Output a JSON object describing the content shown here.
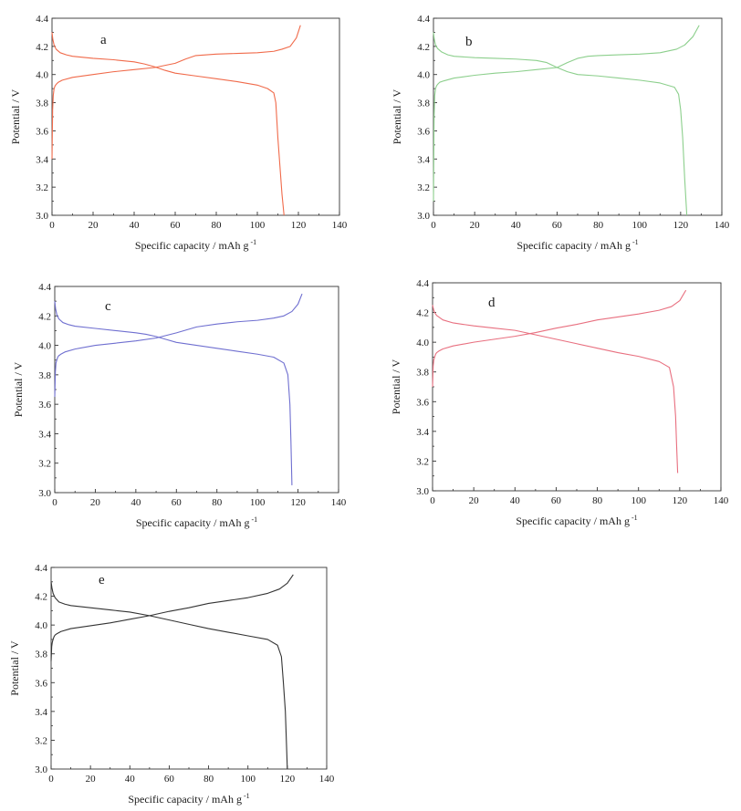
{
  "chart_data": [
    {
      "panel": "a",
      "type": "line",
      "xlabel": "Specific capacity / mAh g",
      "xlabel_superscript": "-1",
      "ylabel": "Potential / V",
      "xlim": [
        0,
        140
      ],
      "ylim": [
        3.0,
        4.4
      ],
      "xticks": [
        "0",
        "20",
        "40",
        "60",
        "80",
        "100",
        "120",
        "140"
      ],
      "yticks": [
        "3.0",
        "3.2",
        "3.4",
        "3.6",
        "3.8",
        "4.0",
        "4.2",
        "4.4"
      ],
      "color": "#f06a4a",
      "series": [
        {
          "x": [
            0,
            0.3,
            0.6,
            1,
            1.5,
            2,
            3,
            5,
            10,
            20,
            30,
            40,
            50,
            60,
            65,
            70,
            80,
            90,
            100,
            108,
            112,
            116,
            119,
            121
          ],
          "y": [
            3.4,
            3.75,
            3.85,
            3.9,
            3.92,
            3.93,
            3.945,
            3.96,
            3.98,
            4.0,
            4.02,
            4.035,
            4.05,
            4.08,
            4.11,
            4.135,
            4.145,
            4.15,
            4.155,
            4.165,
            4.18,
            4.2,
            4.26,
            4.35
          ]
        },
        {
          "x": [
            0,
            0.4,
            1,
            2,
            4,
            7,
            10,
            20,
            30,
            40,
            45,
            50,
            55,
            60,
            70,
            80,
            90,
            100,
            105,
            108,
            109,
            110,
            111,
            112,
            113
          ],
          "y": [
            4.3,
            4.25,
            4.21,
            4.18,
            4.155,
            4.14,
            4.13,
            4.115,
            4.105,
            4.09,
            4.075,
            4.055,
            4.03,
            4.01,
            3.99,
            3.97,
            3.95,
            3.925,
            3.9,
            3.87,
            3.8,
            3.55,
            3.35,
            3.15,
            3.0
          ]
        }
      ]
    },
    {
      "panel": "b",
      "type": "line",
      "xlabel": "Specific capacity / mAh g",
      "xlabel_superscript": "-1",
      "ylabel": "Potential / V",
      "xlim": [
        0,
        140
      ],
      "ylim": [
        3.0,
        4.4
      ],
      "xticks": [
        "0",
        "20",
        "40",
        "60",
        "80",
        "100",
        "120",
        "140"
      ],
      "yticks": [
        "3.0",
        "3.2",
        "3.4",
        "3.6",
        "3.8",
        "4.0",
        "4.2",
        "4.4"
      ],
      "color": "#8ccf8c",
      "series": [
        {
          "x": [
            0,
            0.3,
            0.6,
            1,
            1.5,
            2,
            3,
            5,
            10,
            20,
            30,
            40,
            50,
            60,
            65,
            70,
            75,
            80,
            90,
            100,
            110,
            118,
            122,
            126,
            129
          ],
          "y": [
            3.1,
            3.7,
            3.85,
            3.9,
            3.92,
            3.93,
            3.945,
            3.955,
            3.975,
            3.995,
            4.01,
            4.02,
            4.035,
            4.05,
            4.085,
            4.115,
            4.13,
            4.135,
            4.14,
            4.145,
            4.155,
            4.18,
            4.21,
            4.27,
            4.35
          ]
        },
        {
          "x": [
            0,
            0.4,
            1,
            2,
            4,
            7,
            10,
            20,
            30,
            40,
            50,
            55,
            60,
            65,
            70,
            80,
            90,
            100,
            110,
            117,
            119,
            120,
            121,
            122,
            123
          ],
          "y": [
            4.3,
            4.25,
            4.21,
            4.185,
            4.16,
            4.14,
            4.13,
            4.12,
            4.115,
            4.11,
            4.1,
            4.085,
            4.05,
            4.02,
            4.0,
            3.99,
            3.975,
            3.96,
            3.94,
            3.91,
            3.86,
            3.75,
            3.55,
            3.25,
            3.0
          ]
        }
      ]
    },
    {
      "panel": "c",
      "type": "line",
      "xlabel": "Specific capacity / mAh g",
      "xlabel_superscript": "-1",
      "ylabel": "Potential / V",
      "xlim": [
        0,
        140
      ],
      "ylim": [
        3.0,
        4.4
      ],
      "xticks": [
        "0",
        "20",
        "40",
        "60",
        "80",
        "100",
        "120",
        "140"
      ],
      "yticks": [
        "3.0",
        "3.2",
        "3.4",
        "3.6",
        "3.8",
        "4.0",
        "4.2",
        "4.4"
      ],
      "color": "#6f6fd0",
      "series": [
        {
          "x": [
            0,
            0.3,
            0.6,
            1,
            1.5,
            2,
            3,
            5,
            10,
            20,
            30,
            40,
            50,
            60,
            70,
            80,
            90,
            100,
            108,
            113,
            117,
            120,
            122
          ],
          "y": [
            3.65,
            3.82,
            3.88,
            3.9,
            3.92,
            3.93,
            3.94,
            3.955,
            3.975,
            4.0,
            4.015,
            4.03,
            4.05,
            4.085,
            4.125,
            4.145,
            4.16,
            4.17,
            4.185,
            4.2,
            4.23,
            4.28,
            4.35
          ]
        },
        {
          "x": [
            0,
            0.4,
            1,
            2,
            4,
            7,
            10,
            20,
            30,
            40,
            45,
            50,
            55,
            60,
            70,
            80,
            90,
            100,
            108,
            113,
            115,
            116,
            116.5,
            117
          ],
          "y": [
            4.3,
            4.25,
            4.21,
            4.18,
            4.155,
            4.14,
            4.13,
            4.115,
            4.1,
            4.085,
            4.075,
            4.06,
            4.04,
            4.02,
            4.0,
            3.98,
            3.96,
            3.94,
            3.92,
            3.88,
            3.8,
            3.6,
            3.35,
            3.05
          ]
        }
      ]
    },
    {
      "panel": "d",
      "type": "line",
      "xlabel": "Specific capacity / mAh g",
      "xlabel_superscript": "-1",
      "ylabel": "Potential / V",
      "xlim": [
        0,
        140
      ],
      "ylim": [
        3.0,
        4.4
      ],
      "xticks": [
        "0",
        "20",
        "40",
        "60",
        "80",
        "100",
        "120",
        "140"
      ],
      "yticks": [
        "3.0",
        "3.2",
        "3.4",
        "3.6",
        "3.8",
        "4.0",
        "4.2",
        "4.4"
      ],
      "color": "#e86f7f",
      "series": [
        {
          "x": [
            0,
            0.3,
            0.6,
            1,
            1.5,
            2,
            3,
            5,
            10,
            20,
            30,
            40,
            50,
            60,
            70,
            80,
            90,
            100,
            110,
            116,
            120,
            123
          ],
          "y": [
            3.7,
            3.84,
            3.88,
            3.9,
            3.92,
            3.93,
            3.94,
            3.955,
            3.975,
            4.0,
            4.02,
            4.04,
            4.065,
            4.095,
            4.12,
            4.15,
            4.17,
            4.19,
            4.215,
            4.24,
            4.28,
            4.35
          ]
        },
        {
          "x": [
            0,
            0.5,
            1,
            2,
            5,
            10,
            20,
            30,
            40,
            50,
            60,
            70,
            80,
            90,
            100,
            110,
            115,
            117,
            118,
            118.5,
            119
          ],
          "y": [
            4.25,
            4.22,
            4.2,
            4.18,
            4.15,
            4.13,
            4.11,
            4.095,
            4.08,
            4.05,
            4.02,
            3.99,
            3.96,
            3.93,
            3.905,
            3.87,
            3.83,
            3.7,
            3.5,
            3.3,
            3.12
          ]
        }
      ]
    },
    {
      "panel": "e",
      "type": "line",
      "xlabel": "Specific capacity / mAh g",
      "xlabel_superscript": "-1",
      "ylabel": "Potential / V",
      "xlim": [
        0,
        140
      ],
      "ylim": [
        3.0,
        4.4
      ],
      "xticks": [
        "0",
        "20",
        "40",
        "60",
        "80",
        "100",
        "120",
        "140"
      ],
      "yticks": [
        "3.0",
        "3.2",
        "3.4",
        "3.6",
        "3.8",
        "4.0",
        "4.2",
        "4.4"
      ],
      "color": "#333333",
      "series": [
        {
          "x": [
            0,
            0.3,
            0.6,
            1,
            1.5,
            2,
            3,
            5,
            10,
            20,
            30,
            40,
            50,
            60,
            70,
            80,
            90,
            100,
            110,
            116,
            120,
            123
          ],
          "y": [
            3.75,
            3.85,
            3.88,
            3.9,
            3.92,
            3.93,
            3.94,
            3.955,
            3.975,
            3.995,
            4.015,
            4.04,
            4.065,
            4.095,
            4.12,
            4.15,
            4.17,
            4.19,
            4.22,
            4.25,
            4.29,
            4.35
          ]
        },
        {
          "x": [
            0,
            0.4,
            1,
            2,
            4,
            7,
            10,
            20,
            30,
            40,
            50,
            60,
            70,
            80,
            90,
            100,
            110,
            115,
            117,
            118,
            119,
            119.5,
            120
          ],
          "y": [
            4.3,
            4.26,
            4.22,
            4.19,
            4.16,
            4.145,
            4.135,
            4.12,
            4.105,
            4.09,
            4.065,
            4.035,
            4.005,
            3.975,
            3.95,
            3.925,
            3.9,
            3.86,
            3.78,
            3.6,
            3.4,
            3.2,
            3.0
          ]
        }
      ]
    }
  ]
}
